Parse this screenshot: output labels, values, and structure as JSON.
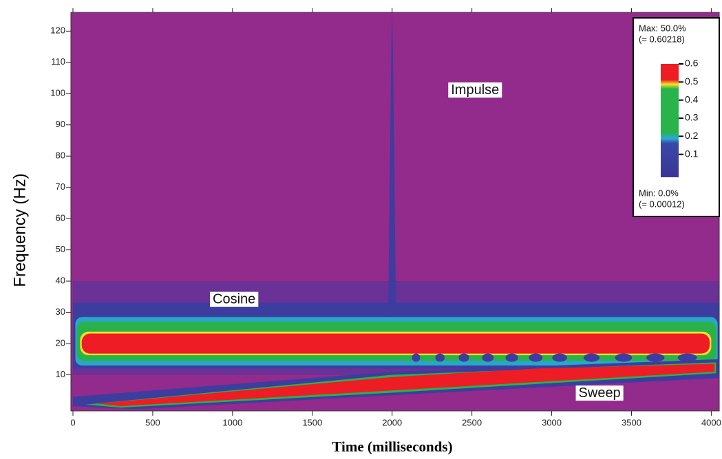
{
  "chart_data": {
    "type": "heatmap",
    "xlabel": "Time (milliseconds)",
    "ylabel": "Frequency  (Hz)",
    "xlim": [
      0,
      4050
    ],
    "ylim": [
      0,
      126
    ],
    "xticks": [
      0,
      500,
      1000,
      1500,
      2000,
      2500,
      3000,
      3500,
      4000
    ],
    "yticks": [
      10,
      20,
      30,
      40,
      50,
      60,
      70,
      80,
      90,
      100,
      110,
      120
    ],
    "annotations": [
      {
        "text": "Impulse",
        "x": 2520,
        "y": 101
      },
      {
        "text": "Cosine",
        "x": 1010,
        "y": 34
      },
      {
        "text": "Sweep",
        "x": 3300,
        "y": 4
      }
    ],
    "colorbar": {
      "max_label": "Max: 50.0%",
      "max_value": "(= 0.60218)",
      "min_label": "Min: 0.0%",
      "min_value": "(= 0.00012)",
      "lim": [
        0,
        0.6
      ],
      "ticks": [
        0.6,
        0.5,
        0.4,
        0.3,
        0.2,
        0.1
      ]
    }
  }
}
